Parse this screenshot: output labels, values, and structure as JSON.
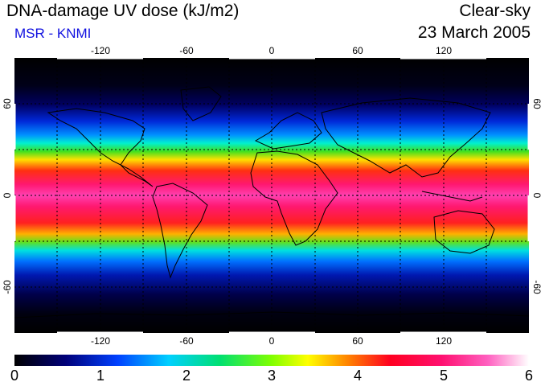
{
  "header": {
    "title": "DNA-damage UV dose (kJ/m2)",
    "source": "MSR - KNMI",
    "condition": "Clear-sky",
    "date": "23 March 2005"
  },
  "map": {
    "lon_ticks": [
      "-120",
      "-60",
      "0",
      "60",
      "120"
    ],
    "lat_ticks": [
      "60",
      "0",
      "-60"
    ],
    "lat_ticks_right": [
      "60",
      "0",
      "-60"
    ]
  },
  "colorbar": {
    "labels": [
      "0",
      "1",
      "2",
      "3",
      "4",
      "5",
      "6"
    ],
    "colors": [
      "#000000",
      "#0010c0",
      "#0080ff",
      "#00ffc0",
      "#20e020",
      "#ffff00",
      "#ff8000",
      "#ff0030",
      "#ff2090",
      "#ffffff"
    ]
  }
}
